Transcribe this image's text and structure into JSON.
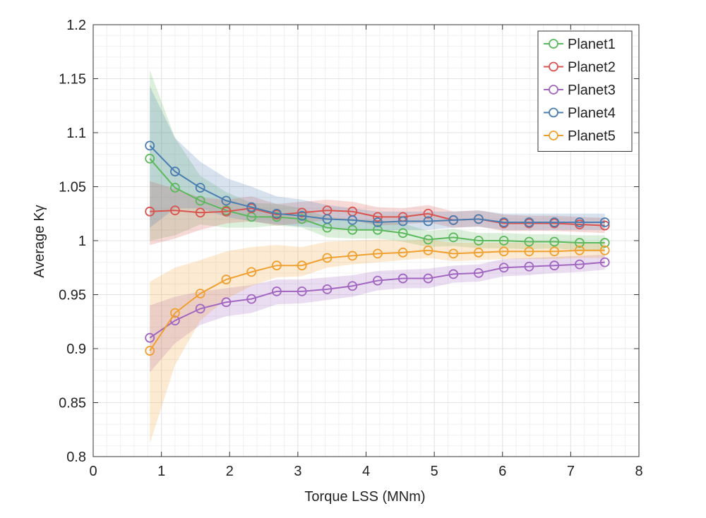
{
  "chart_data": {
    "type": "line",
    "title": "",
    "xlabel": "Torque LSS (MNm)",
    "ylabel_main": "Average",
    "ylabel_symbol": "Kγ",
    "xlim": [
      0,
      8
    ],
    "ylim": [
      0.8,
      1.2
    ],
    "xticks": [
      0,
      1,
      2,
      3,
      4,
      5,
      6,
      7,
      8
    ],
    "xtick_labels": [
      "0",
      "1",
      "2",
      "3",
      "4",
      "5",
      "6",
      "7",
      "8"
    ],
    "yticks": [
      0.8,
      0.85,
      0.9,
      0.95,
      1.0,
      1.05,
      1.1,
      1.15,
      1.2
    ],
    "ytick_labels": [
      "0.8",
      "0.85",
      "0.9",
      "0.95",
      "1",
      "1.05",
      "1.1",
      "1.15",
      "1.2"
    ],
    "grid": true,
    "legend_position": "top-right",
    "x": [
      0.83,
      1.2,
      1.57,
      1.95,
      2.32,
      2.69,
      3.06,
      3.43,
      3.8,
      4.17,
      4.54,
      4.91,
      5.28,
      5.65,
      6.02,
      6.39,
      6.76,
      7.13,
      7.5
    ],
    "series": [
      {
        "name": "Planet1",
        "color": "#5cb85c",
        "values": [
          1.076,
          1.049,
          1.037,
          1.028,
          1.022,
          1.022,
          1.02,
          1.012,
          1.01,
          1.01,
          1.007,
          1.001,
          1.003,
          1.0,
          1.0,
          0.999,
          0.999,
          0.998,
          0.998
        ],
        "lower": [
          1.0,
          1.005,
          1.015,
          1.012,
          1.012,
          1.014,
          1.012,
          1.003,
          1.002,
          1.002,
          0.999,
          0.994,
          0.995,
          0.993,
          0.993,
          0.992,
          0.993,
          0.991,
          0.991
        ],
        "upper": [
          1.158,
          1.095,
          1.06,
          1.045,
          1.035,
          1.034,
          1.03,
          1.022,
          1.02,
          1.019,
          1.016,
          1.009,
          1.011,
          1.007,
          1.007,
          1.006,
          1.006,
          1.005,
          1.005
        ]
      },
      {
        "name": "Planet2",
        "color": "#d9534f",
        "values": [
          1.027,
          1.028,
          1.026,
          1.027,
          1.03,
          1.024,
          1.026,
          1.028,
          1.027,
          1.022,
          1.022,
          1.025,
          1.019,
          1.02,
          1.016,
          1.016,
          1.016,
          1.015,
          1.014
        ],
        "lower": [
          0.996,
          1.002,
          1.01,
          1.016,
          1.018,
          1.014,
          1.016,
          1.019,
          1.019,
          1.014,
          1.015,
          1.017,
          1.012,
          1.013,
          1.009,
          1.009,
          1.009,
          1.008,
          1.007
        ],
        "upper": [
          1.055,
          1.048,
          1.04,
          1.038,
          1.041,
          1.034,
          1.036,
          1.038,
          1.036,
          1.031,
          1.03,
          1.033,
          1.027,
          1.028,
          1.024,
          1.023,
          1.023,
          1.022,
          1.021
        ]
      },
      {
        "name": "Planet3",
        "color": "#a066c0",
        "values": [
          0.91,
          0.926,
          0.937,
          0.943,
          0.946,
          0.953,
          0.953,
          0.955,
          0.958,
          0.963,
          0.965,
          0.965,
          0.969,
          0.97,
          0.975,
          0.976,
          0.977,
          0.978,
          0.98
        ],
        "lower": [
          0.878,
          0.905,
          0.922,
          0.93,
          0.933,
          0.941,
          0.942,
          0.945,
          0.948,
          0.954,
          0.956,
          0.956,
          0.961,
          0.962,
          0.967,
          0.968,
          0.97,
          0.971,
          0.973
        ],
        "upper": [
          0.94,
          0.948,
          0.953,
          0.956,
          0.959,
          0.964,
          0.964,
          0.966,
          0.968,
          0.972,
          0.973,
          0.974,
          0.977,
          0.978,
          0.983,
          0.984,
          0.985,
          0.986,
          0.987
        ]
      },
      {
        "name": "Planet4",
        "color": "#4a7db0",
        "values": [
          1.088,
          1.064,
          1.049,
          1.037,
          1.031,
          1.025,
          1.023,
          1.02,
          1.019,
          1.017,
          1.018,
          1.018,
          1.019,
          1.02,
          1.017,
          1.017,
          1.017,
          1.017,
          1.017
        ],
        "lower": [
          1.012,
          1.03,
          1.03,
          1.022,
          1.018,
          1.015,
          1.013,
          1.011,
          1.011,
          1.009,
          1.01,
          1.01,
          1.012,
          1.013,
          1.01,
          1.01,
          1.01,
          1.01,
          1.01
        ],
        "upper": [
          1.143,
          1.095,
          1.073,
          1.058,
          1.05,
          1.041,
          1.038,
          1.033,
          1.03,
          1.027,
          1.027,
          1.027,
          1.027,
          1.028,
          1.025,
          1.025,
          1.025,
          1.025,
          1.025
        ]
      },
      {
        "name": "Planet5",
        "color": "#f0a030",
        "values": [
          0.898,
          0.933,
          0.951,
          0.964,
          0.971,
          0.977,
          0.977,
          0.984,
          0.986,
          0.988,
          0.989,
          0.991,
          0.988,
          0.989,
          0.99,
          0.99,
          0.99,
          0.991,
          0.991
        ],
        "lower": [
          0.812,
          0.885,
          0.926,
          0.946,
          0.958,
          0.966,
          0.967,
          0.975,
          0.978,
          0.98,
          0.982,
          0.984,
          0.981,
          0.982,
          0.983,
          0.983,
          0.983,
          0.984,
          0.984
        ],
        "upper": [
          0.962,
          0.975,
          0.982,
          0.99,
          0.994,
          0.996,
          0.994,
          0.999,
          1.0,
          1.001,
          1.0,
          1.001,
          0.998,
          0.998,
          0.998,
          0.998,
          0.997,
          0.998,
          0.998
        ]
      }
    ]
  }
}
